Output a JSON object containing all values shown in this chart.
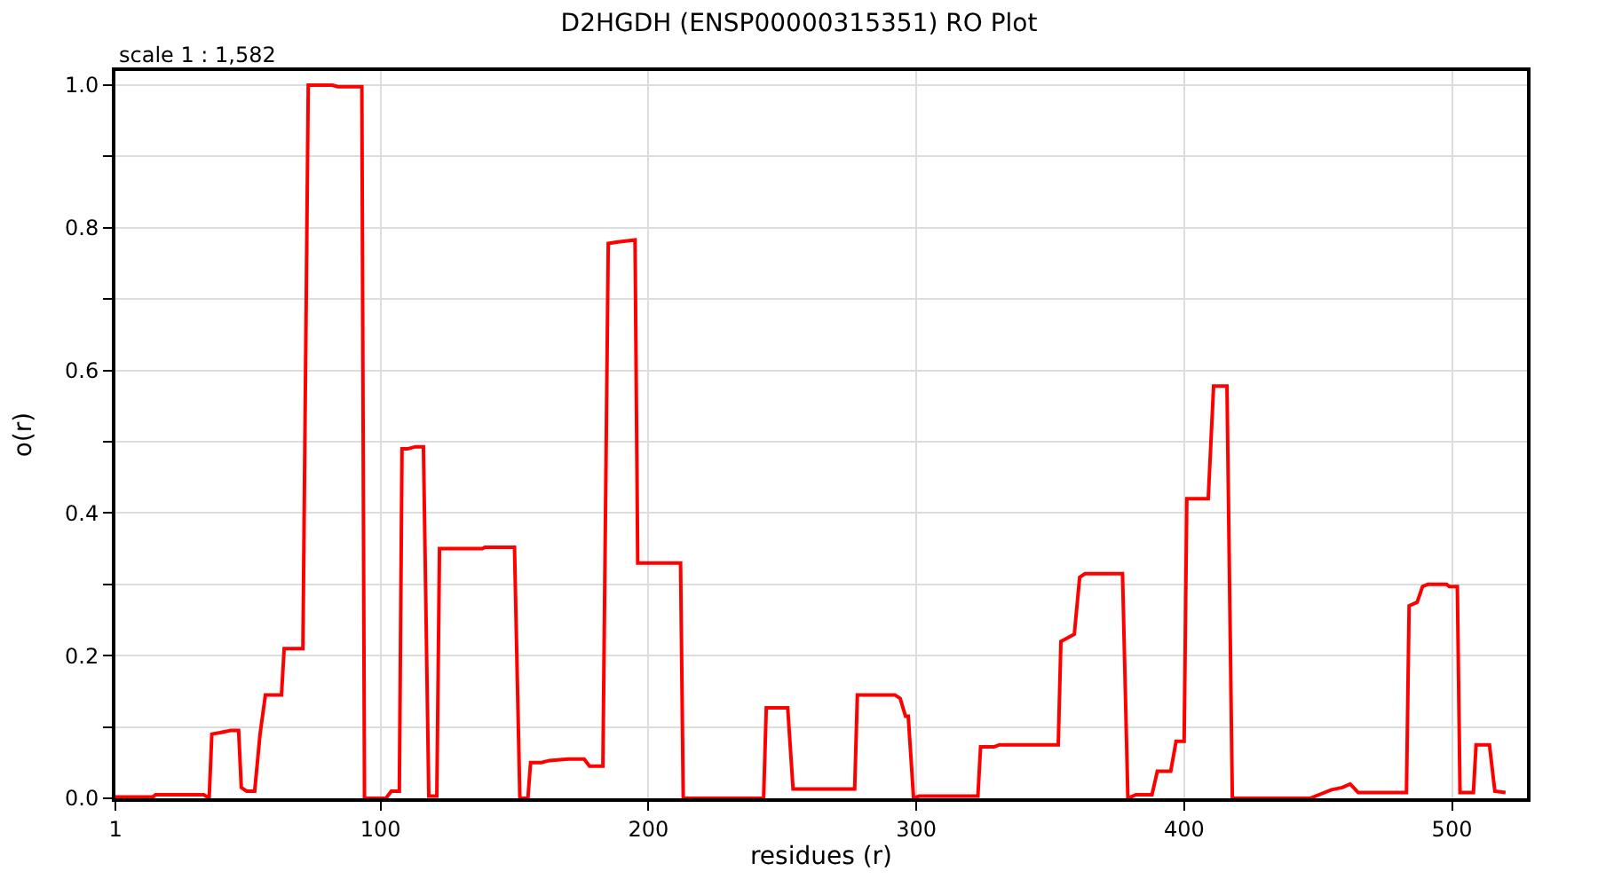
{
  "chart_data": {
    "type": "line",
    "title": "D2HGDH (ENSP00000315351) RO Plot",
    "xlabel": "residues (r)",
    "ylabel": "o(r)",
    "annotations": [
      "scale 1 : 1,582"
    ],
    "xlim": [
      1,
      528
    ],
    "xticks": [
      1,
      100,
      200,
      300,
      400,
      500
    ],
    "ylim": [
      0,
      1.02
    ],
    "yticks": [
      {
        "value": 0,
        "label": "0.0"
      },
      {
        "value": 0.1,
        "label": null
      },
      {
        "value": 0.2,
        "label": "0.2"
      },
      {
        "value": 0.3,
        "label": null
      },
      {
        "value": 0.4,
        "label": "0.4"
      },
      {
        "value": 0.5,
        "label": null
      },
      {
        "value": 0.6,
        "label": "0.6"
      },
      {
        "value": 0.7,
        "label": null
      },
      {
        "value": 0.8,
        "label": "0.8"
      },
      {
        "value": 0.9,
        "label": null
      },
      {
        "value": 1.0,
        "label": "1.0"
      }
    ],
    "grid": true,
    "legend": false,
    "marker": "none",
    "line_style": "solid",
    "series": [
      {
        "color": "#ff0000",
        "x": [
          1,
          15,
          16,
          34,
          36,
          37,
          40,
          44,
          47,
          48,
          50,
          53,
          55,
          57,
          63,
          64,
          71,
          73,
          82,
          84,
          93,
          94,
          102,
          104,
          107,
          108,
          110,
          113,
          116,
          118,
          121,
          122,
          138,
          139,
          150,
          152,
          155,
          156,
          160,
          163,
          170,
          176,
          178,
          181,
          183,
          185,
          188,
          195,
          196,
          212,
          213,
          243,
          244,
          252,
          254,
          277,
          278,
          292,
          294,
          296,
          297,
          299,
          301,
          323,
          324,
          329,
          331,
          353,
          354,
          359,
          361,
          363,
          377,
          379,
          382,
          388,
          390,
          395,
          397,
          400,
          401,
          409,
          411,
          416,
          418,
          447,
          455,
          459,
          462,
          465,
          483,
          484,
          487,
          489,
          491,
          498,
          499,
          502,
          503,
          508,
          509,
          514,
          516,
          520
        ],
        "values": [
          0.002,
          0.002,
          0.005,
          0.005,
          0.0,
          0.09,
          0.092,
          0.095,
          0.095,
          0.015,
          0.01,
          0.01,
          0.09,
          0.145,
          0.145,
          0.21,
          0.21,
          1.0,
          1.0,
          0.998,
          0.998,
          0.0,
          0.0,
          0.01,
          0.01,
          0.49,
          0.49,
          0.493,
          0.493,
          0.003,
          0.003,
          0.35,
          0.35,
          0.352,
          0.352,
          0.0,
          0.0,
          0.05,
          0.05,
          0.053,
          0.055,
          0.055,
          0.045,
          0.045,
          0.045,
          0.778,
          0.78,
          0.783,
          0.33,
          0.33,
          0.0,
          0.0,
          0.127,
          0.127,
          0.013,
          0.013,
          0.145,
          0.145,
          0.14,
          0.115,
          0.115,
          0.0,
          0.003,
          0.003,
          0.072,
          0.072,
          0.075,
          0.075,
          0.22,
          0.23,
          0.31,
          0.315,
          0.315,
          0.0,
          0.005,
          0.005,
          0.038,
          0.038,
          0.08,
          0.08,
          0.42,
          0.42,
          0.578,
          0.578,
          0.0,
          0.0,
          0.012,
          0.015,
          0.02,
          0.008,
          0.008,
          0.27,
          0.275,
          0.297,
          0.3,
          0.3,
          0.297,
          0.297,
          0.008,
          0.008,
          0.075,
          0.075,
          0.01,
          0.008
        ]
      }
    ]
  }
}
